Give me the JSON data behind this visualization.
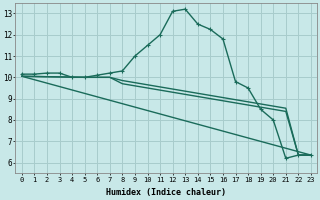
{
  "xlabel": "Humidex (Indice chaleur)",
  "background_color": "#c8e8e8",
  "grid_color": "#a8cccc",
  "line_color": "#1a6b5a",
  "xlim": [
    -0.5,
    23.5
  ],
  "ylim": [
    5.5,
    13.5
  ],
  "xticks": [
    0,
    1,
    2,
    3,
    4,
    5,
    6,
    7,
    8,
    9,
    10,
    11,
    12,
    13,
    14,
    15,
    16,
    17,
    18,
    19,
    20,
    21,
    22,
    23
  ],
  "yticks": [
    6,
    7,
    8,
    9,
    10,
    11,
    12,
    13
  ],
  "peak_line_x": [
    0,
    1,
    2,
    3,
    4,
    5,
    6,
    7,
    8,
    9,
    10,
    11,
    12,
    13,
    14,
    15,
    16,
    17,
    18,
    19,
    20,
    21,
    22,
    23
  ],
  "peak_line_y": [
    10.15,
    10.15,
    10.2,
    10.2,
    10.0,
    10.0,
    10.1,
    10.2,
    10.3,
    11.0,
    11.5,
    12.0,
    13.1,
    13.2,
    12.5,
    12.25,
    11.8,
    9.8,
    9.5,
    8.5,
    8.0,
    6.2,
    6.35,
    6.35
  ],
  "slope_line1_x": [
    0,
    23
  ],
  "slope_line1_y": [
    10.05,
    6.35
  ],
  "slope_line2_x": [
    0,
    5,
    6,
    7,
    8,
    9,
    10,
    11,
    12,
    13,
    14,
    15,
    16,
    17,
    18,
    19,
    20,
    21,
    22,
    23
  ],
  "slope_line2_y": [
    10.05,
    10.0,
    10.0,
    10.0,
    9.85,
    9.75,
    9.65,
    9.55,
    9.45,
    9.35,
    9.25,
    9.15,
    9.05,
    8.95,
    8.85,
    8.75,
    8.65,
    8.55,
    6.35,
    6.35
  ],
  "slope_line3_x": [
    0,
    5,
    6,
    7,
    8,
    9,
    10,
    11,
    12,
    13,
    14,
    15,
    16,
    17,
    18,
    19,
    20,
    21,
    22,
    23
  ],
  "slope_line3_y": [
    10.05,
    10.0,
    10.0,
    10.0,
    9.7,
    9.6,
    9.5,
    9.4,
    9.3,
    9.2,
    9.1,
    9.0,
    8.9,
    8.8,
    8.7,
    8.6,
    8.5,
    8.4,
    6.35,
    6.35
  ]
}
